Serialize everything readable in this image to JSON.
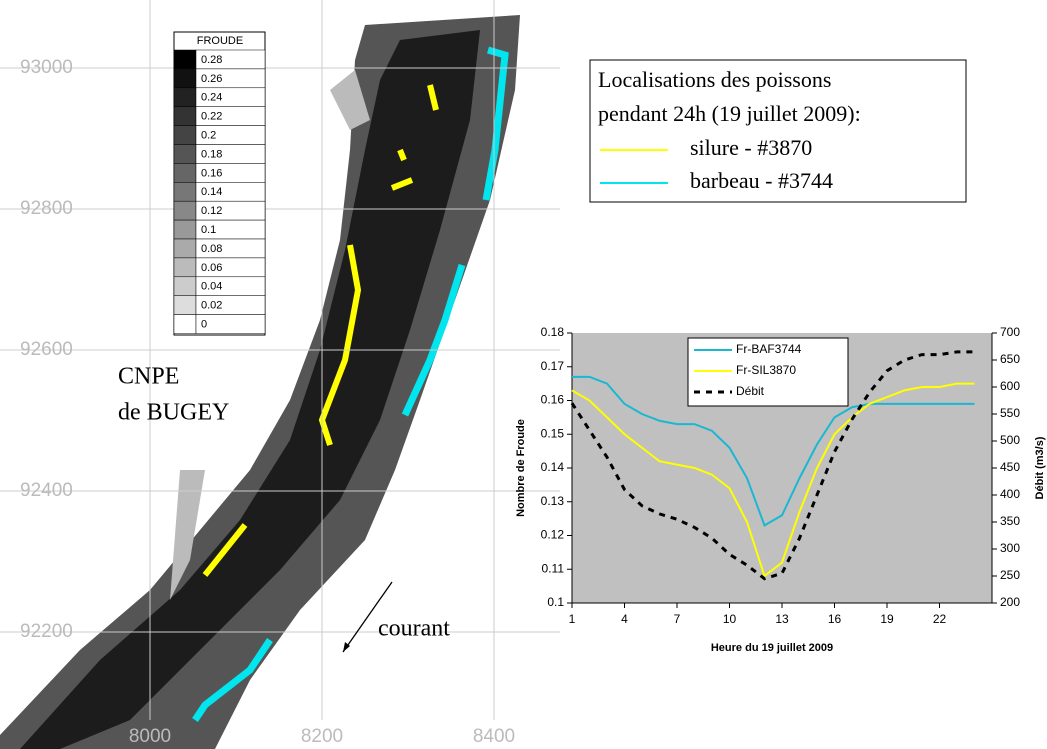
{
  "map": {
    "yticks": [
      93000,
      92800,
      92600,
      92400,
      92200
    ],
    "xticks": [
      8000,
      8200,
      8400
    ],
    "site": [
      "CNPE",
      "de BUGEY"
    ],
    "flow_label": "courant",
    "froude_legend": {
      "title": "FROUDE",
      "values": [
        0.28,
        0.26,
        0.24,
        0.22,
        0.2,
        0.18,
        0.16,
        0.14,
        0.12,
        0.1,
        0.08,
        0.06,
        0.04,
        0.02,
        0
      ],
      "colors": [
        "#000000",
        "#111111",
        "#222222",
        "#333333",
        "#444444",
        "#555555",
        "#666666",
        "#777777",
        "#888888",
        "#999999",
        "#aaaaaa",
        "#bbbbbb",
        "#cccccc",
        "#dddddd",
        "#ffffff"
      ]
    },
    "track_legend": {
      "title": [
        "Localisations des poissons",
        "pendant 24h (19 juillet 2009):"
      ],
      "items": [
        {
          "name": "silure - #3870",
          "color": "#ffff00"
        },
        {
          "name": "barbeau - #3744",
          "color": "#00e5ee"
        }
      ]
    }
  },
  "chart_data": {
    "type": "line",
    "xlabel": "Heure du 19 juillet 2009",
    "ylabel": "Nombre de Froude",
    "y2label": "Débit (m3/s)",
    "x": [
      1,
      2,
      3,
      4,
      5,
      6,
      7,
      8,
      9,
      10,
      11,
      12,
      13,
      14,
      15,
      16,
      17,
      18,
      19,
      20,
      21,
      22,
      23,
      24
    ],
    "xlim": [
      1,
      25
    ],
    "xticks": [
      1,
      4,
      7,
      10,
      13,
      16,
      19,
      22
    ],
    "ylim": [
      0.1,
      0.18
    ],
    "yticks": [
      0.1,
      0.11,
      0.12,
      0.13,
      0.14,
      0.15,
      0.16,
      0.17,
      0.18
    ],
    "y2lim": [
      200,
      700
    ],
    "y2ticks": [
      200,
      250,
      300,
      350,
      400,
      450,
      500,
      550,
      600,
      650,
      700
    ],
    "background": "#c0c0c0",
    "series": [
      {
        "name": "Fr-BAF3744",
        "color": "#1ab8d0",
        "values": [
          0.167,
          0.167,
          0.165,
          0.159,
          0.156,
          0.154,
          0.153,
          0.153,
          0.151,
          0.146,
          0.137,
          0.123,
          0.126,
          0.137,
          0.147,
          0.155,
          0.158,
          0.159,
          0.159,
          0.159,
          0.159,
          0.159,
          0.159,
          0.159
        ]
      },
      {
        "name": "Fr-SIL3870",
        "color": "#ffff00",
        "values": [
          0.163,
          0.16,
          0.155,
          0.15,
          0.146,
          0.142,
          0.141,
          0.14,
          0.138,
          0.134,
          0.124,
          0.108,
          0.112,
          0.127,
          0.14,
          0.15,
          0.155,
          0.159,
          0.161,
          0.163,
          0.164,
          0.164,
          0.165,
          0.165
        ]
      },
      {
        "name": "Débit",
        "color": "#000000",
        "dashed": true,
        "axis": "y2",
        "values": [
          570,
          520,
          470,
          410,
          380,
          365,
          355,
          340,
          320,
          290,
          270,
          245,
          255,
          320,
          400,
          480,
          540,
          590,
          630,
          650,
          660,
          660,
          665,
          665
        ]
      }
    ]
  }
}
